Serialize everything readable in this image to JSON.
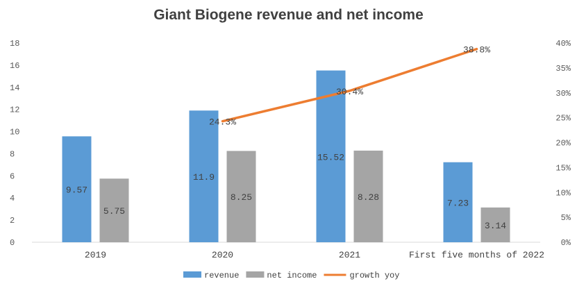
{
  "chart_data": {
    "type": "bar",
    "title": "Giant Biogene revenue and net income",
    "categories": [
      "2019",
      "2020",
      "2021",
      "First five months of 2022"
    ],
    "series": [
      {
        "name": "revenue",
        "type": "bar",
        "axis": "left",
        "values": [
          9.57,
          11.9,
          15.52,
          7.23
        ],
        "color": "#5b9bd5",
        "data_labels": [
          "9.57",
          "11.9",
          "15.52",
          "7.23"
        ]
      },
      {
        "name": "net income",
        "type": "bar",
        "axis": "left",
        "values": [
          5.75,
          8.25,
          8.28,
          3.14
        ],
        "color": "#a5a5a5",
        "data_labels": [
          "5.75",
          "8.25",
          "8.28",
          "3.14"
        ]
      },
      {
        "name": "growth yoy",
        "type": "line",
        "axis": "right",
        "values": [
          null,
          24.3,
          30.4,
          38.8
        ],
        "color": "#ed7d31",
        "data_labels": [
          "",
          "24.3%",
          "30.4%",
          "38.8%"
        ]
      }
    ],
    "left_axis": {
      "ylim": [
        0,
        18
      ],
      "ticks": [
        "0",
        "2",
        "4",
        "6",
        "8",
        "10",
        "12",
        "14",
        "16",
        "18"
      ]
    },
    "right_axis": {
      "ylim": [
        0,
        40
      ],
      "ticks": [
        "0%",
        "5%",
        "10%",
        "15%",
        "20%",
        "25%",
        "30%",
        "35%",
        "40%"
      ]
    },
    "grid": false,
    "legend": "bottom"
  }
}
